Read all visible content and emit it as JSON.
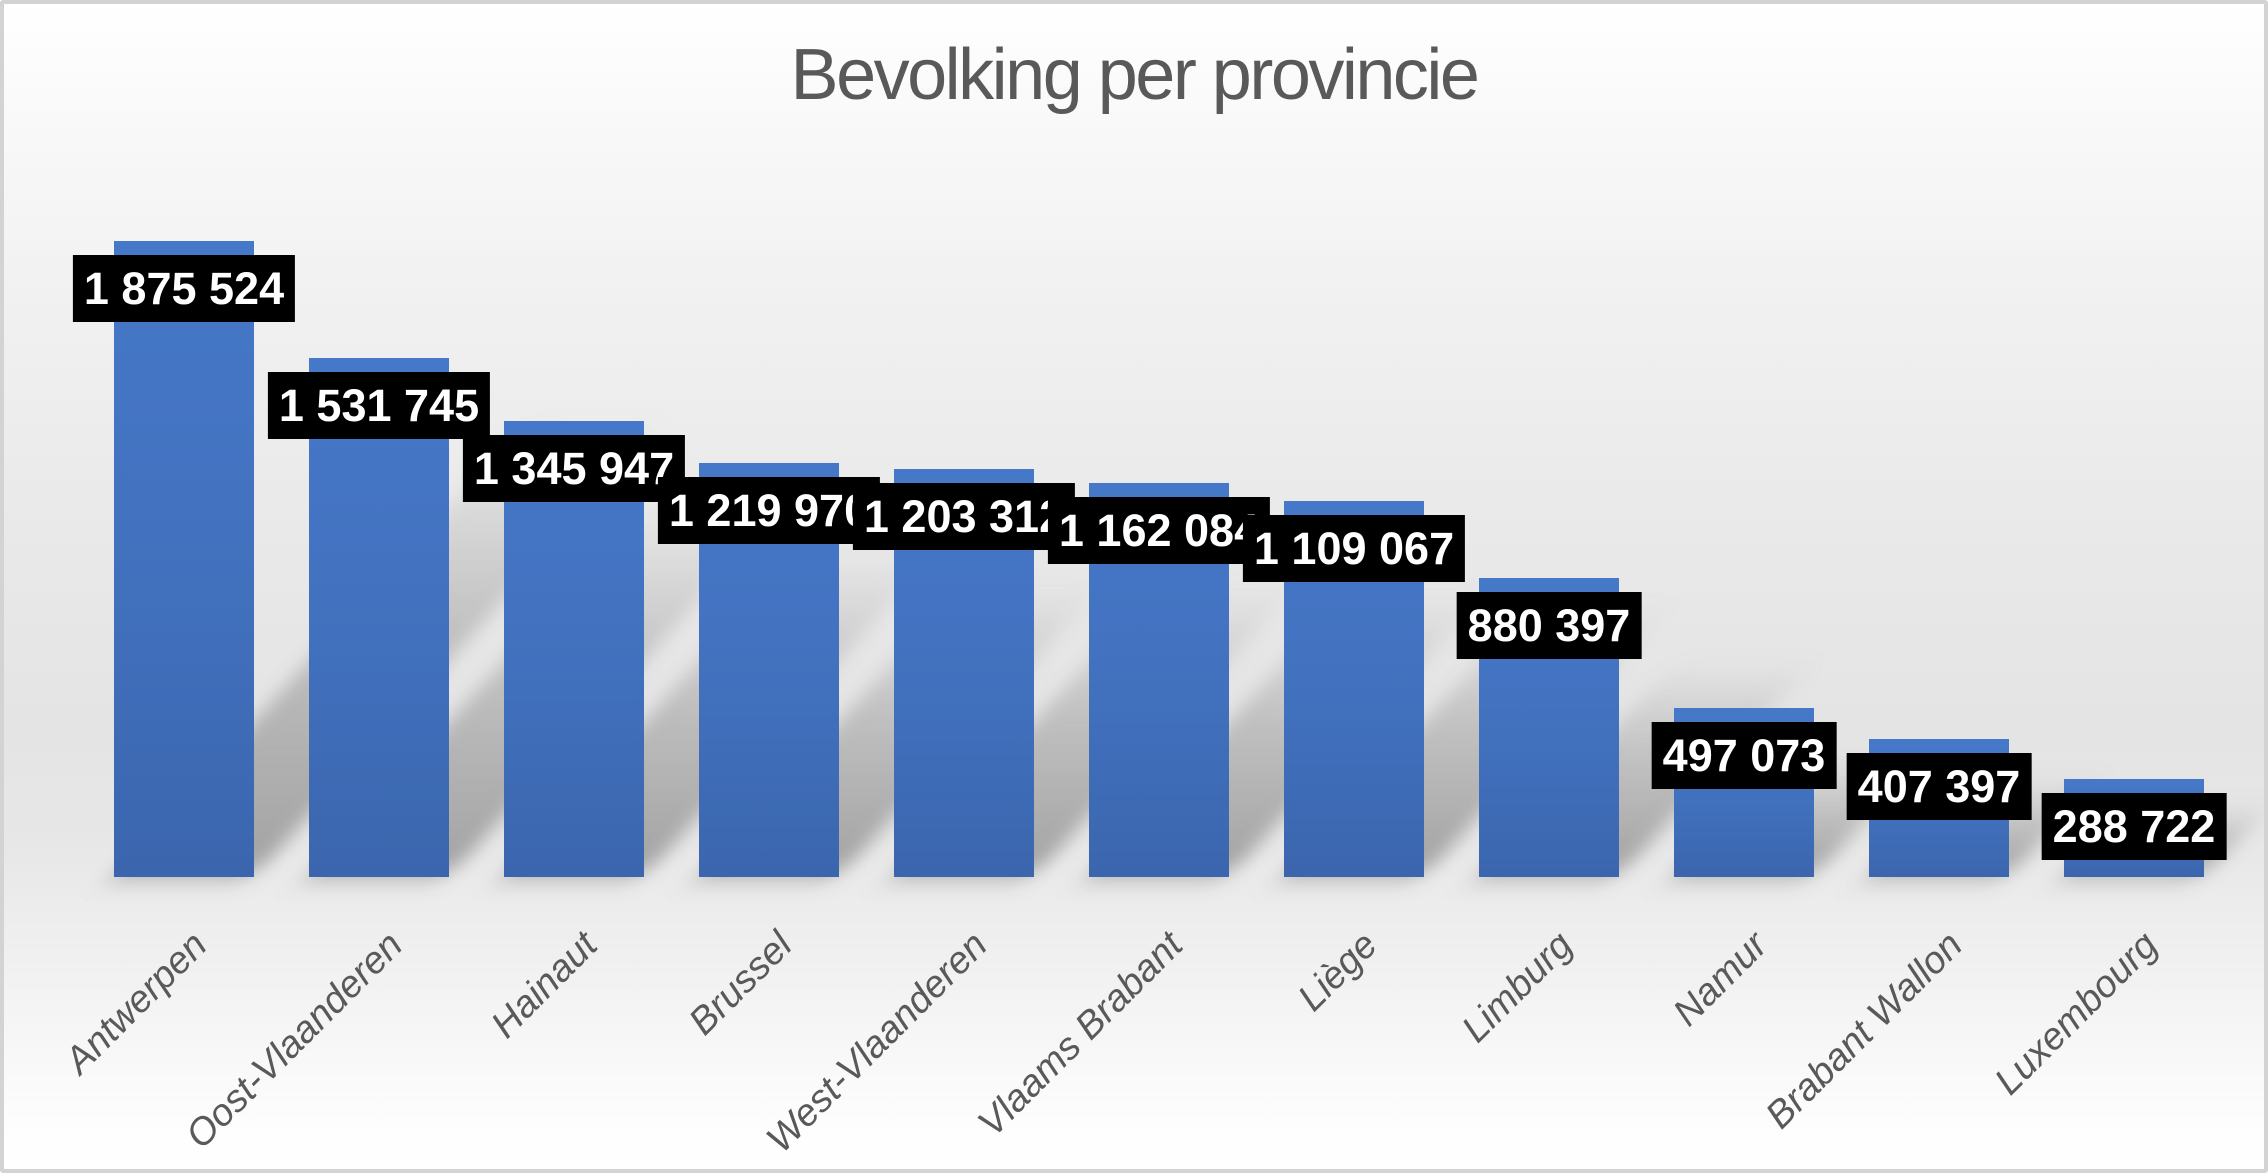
{
  "title": "Bevolking per provincie",
  "colors": {
    "bar_fill": "#4472C4",
    "data_label_bg": "#000000",
    "data_label_text": "#FFFFFF",
    "title_text": "#595959",
    "axis_label_text": "#595959",
    "frame_border": "#D3D3D3",
    "shadow": "#6E6E6E"
  },
  "chart_data": {
    "type": "bar",
    "title": "Bevolking per provincie",
    "categories": [
      "Antwerpen",
      "Oost-Vlaanderen",
      "Hainaut",
      "Brussel",
      "West-Vlaanderen",
      "Vlaams Brabant",
      "Liège",
      "Limburg",
      "Namur",
      "Brabant Wallon",
      "Luxembourg"
    ],
    "values": [
      1875524,
      1531745,
      1345947,
      1219970,
      1203312,
      1162084,
      1109067,
      880397,
      497073,
      407397,
      288722
    ],
    "value_labels": [
      "1 875 524",
      "1 531 745",
      "1 345 947",
      "1 219 970",
      "1 203 312",
      "1 162 084",
      "1 109 067",
      "880 397",
      "497 073",
      "407 397",
      "288 722"
    ],
    "xlabel": "",
    "ylabel": "",
    "ylim": [
      0,
      1875524
    ],
    "grid": false,
    "legend": "none",
    "value_axis_visible": false,
    "data_label_position": "near top of bar, black filled box, white bold text",
    "category_label_rotation_deg": 45,
    "category_label_style": "italic",
    "bar_effect": "perspective shadow to upper-right"
  }
}
